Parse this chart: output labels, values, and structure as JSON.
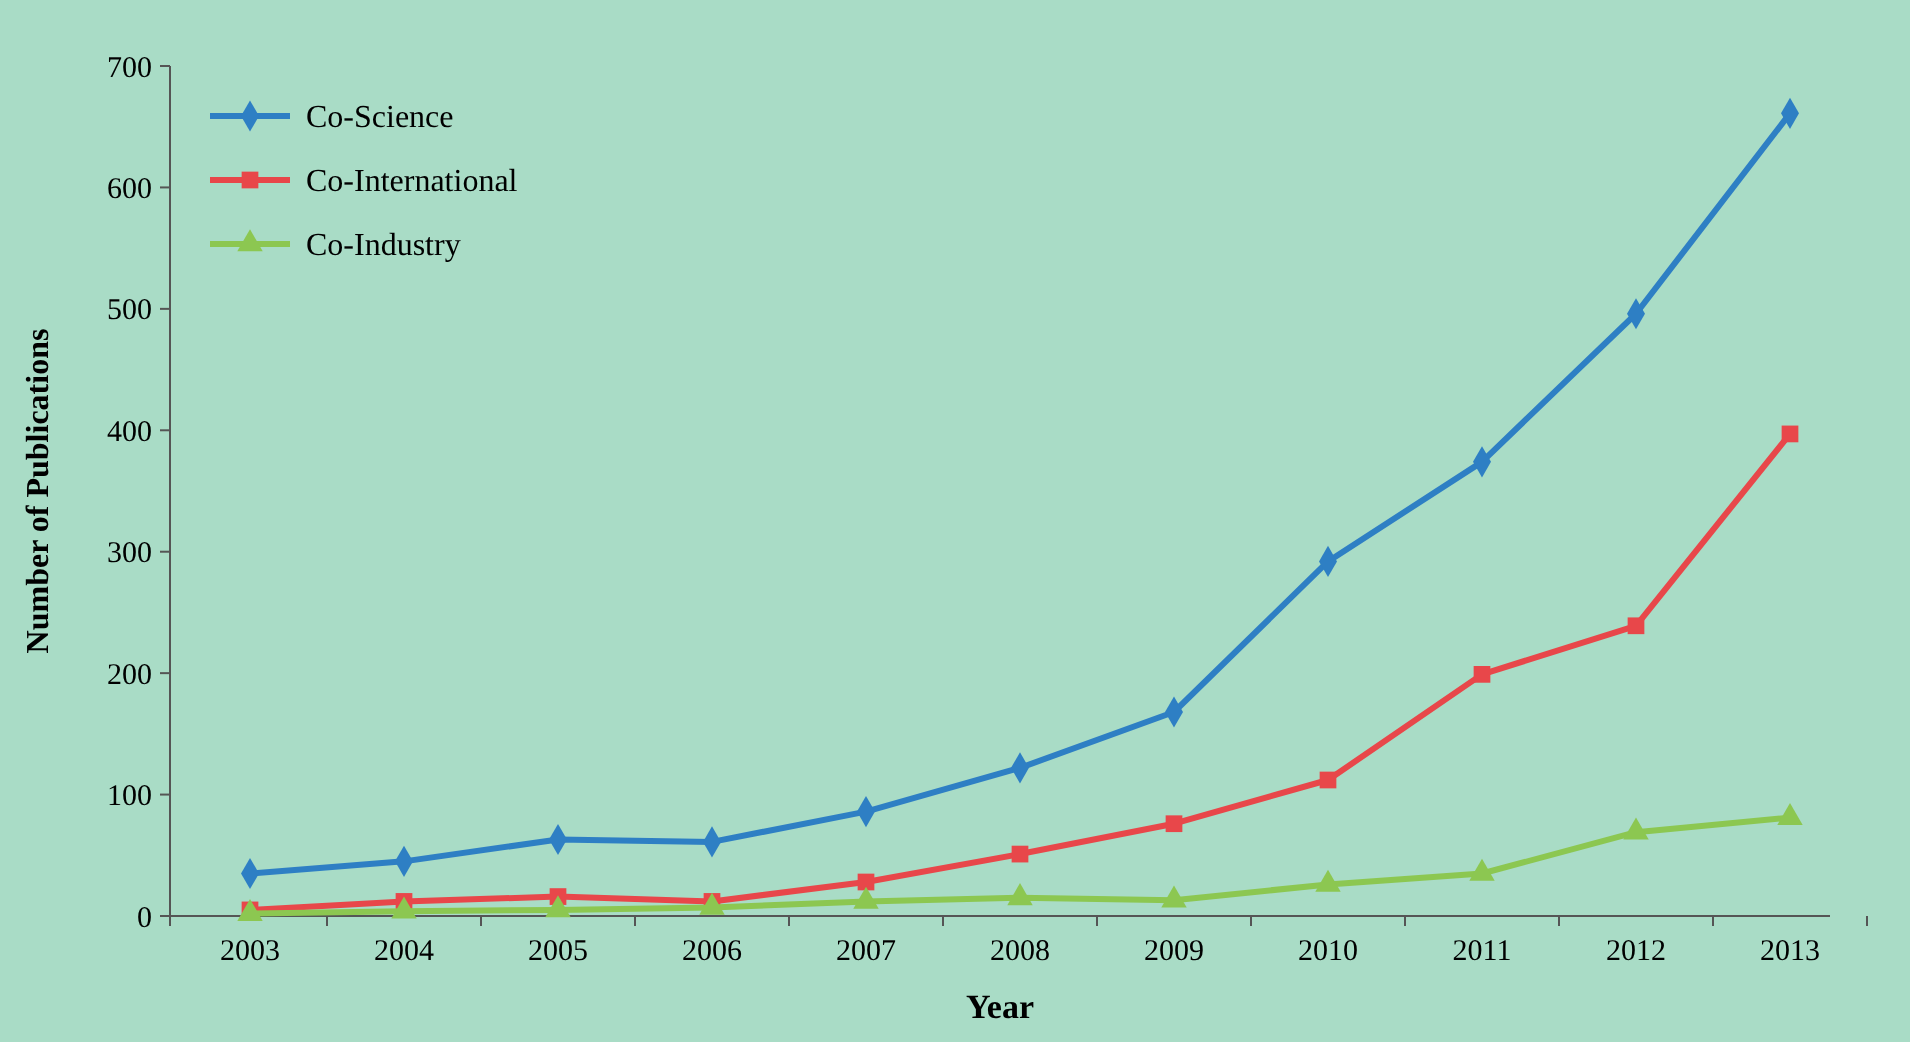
{
  "chart_data": {
    "type": "line",
    "xlabel": "Year",
    "ylabel": "Number of Publications",
    "categories": [
      "2003",
      "2004",
      "2005",
      "2006",
      "2007",
      "2008",
      "2009",
      "2010",
      "2011",
      "2012",
      "2013"
    ],
    "series": [
      {
        "name": "Co-Science",
        "color": "#2e7fc4",
        "marker": "diamond",
        "values": [
          35,
          45,
          63,
          61,
          86,
          122,
          168,
          292,
          374,
          496,
          661
        ]
      },
      {
        "name": "Co-International",
        "color": "#e8474a",
        "marker": "square",
        "values": [
          5,
          12,
          16,
          12,
          28,
          51,
          76,
          112,
          199,
          239,
          397
        ]
      },
      {
        "name": "Co-Industry",
        "color": "#8cc751",
        "marker": "triangle",
        "values": [
          2,
          4,
          5,
          7,
          12,
          15,
          13,
          26,
          35,
          69,
          81
        ]
      }
    ],
    "ylim": [
      0,
      700
    ],
    "yticks": [
      0,
      100,
      200,
      300,
      400,
      500,
      600,
      700
    ],
    "grid": false,
    "legend": "top left",
    "line_style": "solid"
  }
}
